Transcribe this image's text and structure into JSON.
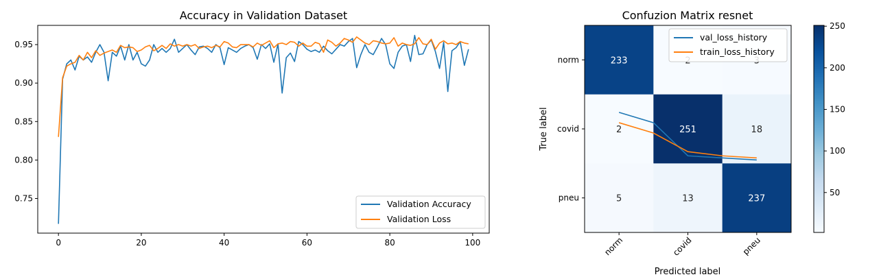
{
  "chart_data": [
    {
      "type": "line",
      "title": "Accuracy in Validation Dataset",
      "xlabel": "",
      "ylabel": "",
      "xlim": [
        -5,
        104
      ],
      "ylim": [
        0.705,
        0.975
      ],
      "xticks": [
        0,
        20,
        40,
        60,
        80,
        100
      ],
      "yticks": [
        0.75,
        0.8,
        0.85,
        0.9,
        0.95
      ],
      "ytick_labels": [
        "0.75",
        "0.80",
        "0.85",
        "0.90",
        "0.95"
      ],
      "legend": {
        "placement": "lower-right"
      },
      "series": [
        {
          "name": "Validation Accuracy",
          "color": "#1f77b4",
          "values": [
            0.717,
            0.905,
            0.925,
            0.93,
            0.917,
            0.935,
            0.93,
            0.934,
            0.927,
            0.94,
            0.95,
            0.94,
            0.903,
            0.94,
            0.935,
            0.948,
            0.93,
            0.95,
            0.93,
            0.94,
            0.925,
            0.922,
            0.93,
            0.95,
            0.94,
            0.945,
            0.94,
            0.945,
            0.957,
            0.94,
            0.945,
            0.95,
            0.943,
            0.937,
            0.947,
            0.948,
            0.945,
            0.94,
            0.95,
            0.946,
            0.924,
            0.946,
            0.943,
            0.94,
            0.945,
            0.948,
            0.95,
            0.946,
            0.931,
            0.95,
            0.945,
            0.951,
            0.927,
            0.951,
            0.887,
            0.933,
            0.939,
            0.928,
            0.954,
            0.95,
            0.944,
            0.941,
            0.943,
            0.94,
            0.948,
            0.942,
            0.938,
            0.944,
            0.95,
            0.948,
            0.954,
            0.958,
            0.92,
            0.937,
            0.95,
            0.94,
            0.937,
            0.947,
            0.958,
            0.95,
            0.925,
            0.919,
            0.94,
            0.948,
            0.95,
            0.928,
            0.962,
            0.937,
            0.938,
            0.95,
            0.956,
            0.941,
            0.919,
            0.953,
            0.889,
            0.942,
            0.946,
            0.954,
            0.923,
            0.944
          ]
        },
        {
          "name": "Validation Loss",
          "color": "#ff7f0e",
          "values": [
            0.83,
            0.907,
            0.922,
            0.925,
            0.927,
            0.936,
            0.93,
            0.94,
            0.933,
            0.942,
            0.936,
            0.939,
            0.941,
            0.943,
            0.94,
            0.949,
            0.946,
            0.947,
            0.946,
            0.941,
            0.943,
            0.947,
            0.949,
            0.942,
            0.945,
            0.949,
            0.945,
            0.951,
            0.948,
            0.95,
            0.948,
            0.95,
            0.948,
            0.95,
            0.945,
            0.947,
            0.948,
            0.946,
            0.949,
            0.947,
            0.954,
            0.952,
            0.947,
            0.946,
            0.95,
            0.95,
            0.95,
            0.947,
            0.952,
            0.949,
            0.952,
            0.955,
            0.946,
            0.951,
            0.952,
            0.95,
            0.954,
            0.953,
            0.948,
            0.952,
            0.948,
            0.948,
            0.953,
            0.951,
            0.94,
            0.956,
            0.953,
            0.948,
            0.952,
            0.958,
            0.956,
            0.953,
            0.96,
            0.956,
            0.952,
            0.95,
            0.955,
            0.954,
            0.952,
            0.951,
            0.952,
            0.959,
            0.948,
            0.952,
            0.95,
            0.949,
            0.951,
            0.959,
            0.951,
            0.95,
            0.957,
            0.944,
            0.952,
            0.955,
            0.951,
            0.952,
            0.95,
            0.954,
            0.952,
            0.951
          ]
        }
      ]
    },
    {
      "type": "heatmap",
      "title": "Confuzion Matrix resnet",
      "xlabel": "Predicted label",
      "ylabel": "True label",
      "x_categories": [
        "norm",
        "covid",
        "pneu"
      ],
      "y_categories": [
        "norm",
        "covid",
        "pneu"
      ],
      "values": [
        [
          233,
          2,
          3
        ],
        [
          2,
          251,
          18
        ],
        [
          5,
          13,
          237
        ]
      ],
      "colormap": "Blues",
      "colorbar": {
        "ticks": [
          50,
          100,
          150,
          200,
          250
        ],
        "range": [
          2,
          251
        ]
      },
      "overlay_lines": {
        "legend": {
          "placement": "upper-right"
        },
        "series": [
          {
            "name": "val_loss_history",
            "color": "#1f77b4",
            "values": [
              0.58,
              0.53,
              0.37,
              0.36,
              0.35
            ]
          },
          {
            "name": "train_loss_history",
            "color": "#ff7f0e",
            "values": [
              0.53,
              0.48,
              0.39,
              0.37,
              0.36
            ]
          }
        ]
      }
    }
  ]
}
